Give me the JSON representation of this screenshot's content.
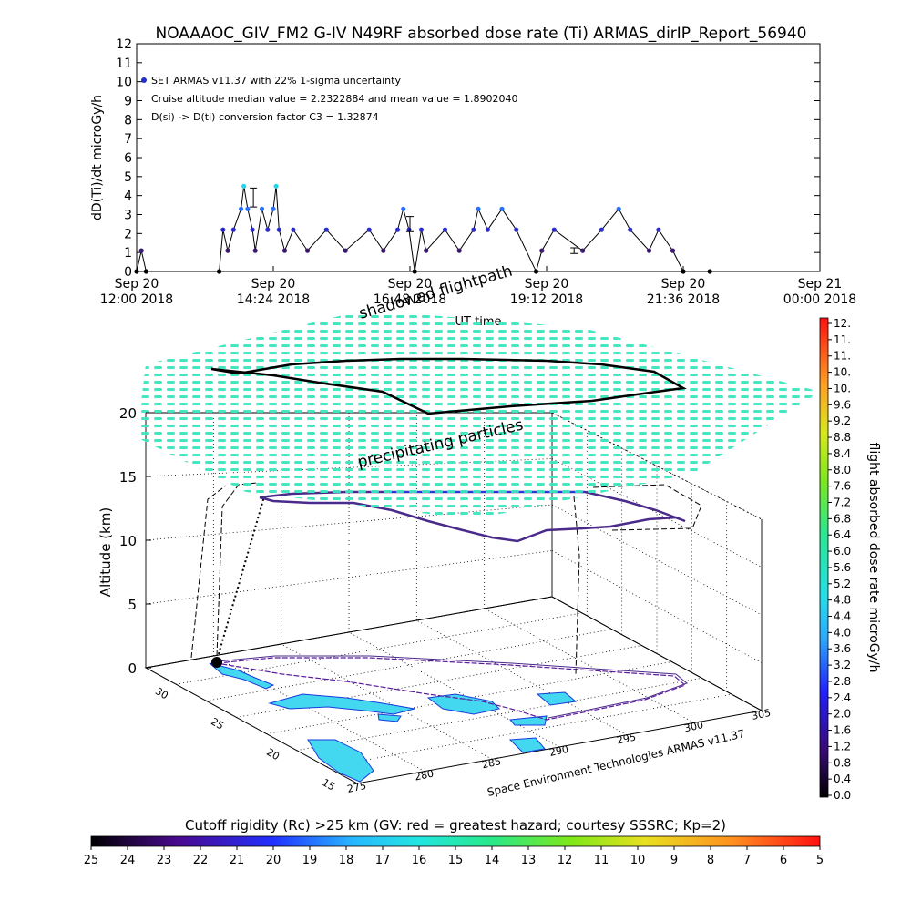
{
  "title": "NOAAAOC_GIV_FM2 G-IV    N49RF   absorbed dose rate (Ti) ARMAS_dirIP_Report_56940",
  "top_chart": {
    "ylabel": "dD(Ti)/dt microGy/h",
    "xlabel": "UT time",
    "annotations": [
      "SET ARMAS v11.37 with 22% 1-sigma uncertainty",
      "Cruise altitude median value = 2.2322884 and mean value = 1.8902040",
      "D(si) -> D(ti) conversion factor C3 = 1.32874"
    ],
    "y_ticks": [
      "0",
      "1",
      "2",
      "3",
      "4",
      "5",
      "6",
      "7",
      "8",
      "9",
      "10",
      "11",
      "12"
    ],
    "x_ticks": [
      {
        "l1": "Sep 20",
        "l2": "12:00  2018"
      },
      {
        "l1": "Sep 20",
        "l2": "14:24  2018"
      },
      {
        "l1": "Sep 20",
        "l2": "16:48  2018"
      },
      {
        "l1": "Sep 20",
        "l2": "19:12  2018"
      },
      {
        "l1": "Sep 20",
        "l2": "21:36  2018"
      },
      {
        "l1": "Sep 21",
        "l2": "00:00  2018"
      }
    ]
  },
  "chart_data": [
    {
      "type": "scatter",
      "title": "NOAAAOC_GIV_FM2 G-IV    N49RF   absorbed dose rate (Ti) ARMAS_dirIP_Report_56940",
      "xlabel": "UT time",
      "ylabel": "dD(Ti)/dt microGy/h",
      "xlim": [
        "2018-09-20 12:00",
        "2018-09-21 00:00"
      ],
      "ylim": [
        0,
        12
      ],
      "series": [
        {
          "name": "SET ARMAS v11.37 with 22% 1-sigma uncertainty",
          "points": [
            [
              "2018-09-20 12:00",
              0
            ],
            [
              "2018-09-20 12:05",
              1.1
            ],
            [
              "2018-09-20 12:10",
              0
            ],
            [
              "2018-09-20 13:27",
              0
            ],
            [
              "2018-09-20 13:31",
              2.2
            ],
            [
              "2018-09-20 13:36",
              1.1
            ],
            [
              "2018-09-20 13:42",
              2.2
            ],
            [
              "2018-09-20 13:50",
              3.3
            ],
            [
              "2018-09-20 13:53",
              4.5
            ],
            [
              "2018-09-20 13:57",
              3.3
            ],
            [
              "2018-09-20 14:02",
              2.2
            ],
            [
              "2018-09-20 14:05",
              1.1
            ],
            [
              "2018-09-20 14:12",
              3.3
            ],
            [
              "2018-09-20 14:18",
              2.2
            ],
            [
              "2018-09-20 14:24",
              3.3
            ],
            [
              "2018-09-20 14:27",
              4.5
            ],
            [
              "2018-09-20 14:30",
              2.2
            ],
            [
              "2018-09-20 14:36",
              1.1
            ],
            [
              "2018-09-20 14:45",
              2.2
            ],
            [
              "2018-09-20 15:00",
              1.1
            ],
            [
              "2018-09-20 15:20",
              2.2
            ],
            [
              "2018-09-20 15:40",
              1.1
            ],
            [
              "2018-09-20 16:05",
              2.2
            ],
            [
              "2018-09-20 16:20",
              1.1
            ],
            [
              "2018-09-20 16:35",
              2.2
            ],
            [
              "2018-09-20 16:41",
              3.3
            ],
            [
              "2018-09-20 16:47",
              2.2
            ],
            [
              "2018-09-20 16:53",
              0
            ],
            [
              "2018-09-20 17:00",
              2.2
            ],
            [
              "2018-09-20 17:05",
              1.1
            ],
            [
              "2018-09-20 17:25",
              2.2
            ],
            [
              "2018-09-20 17:40",
              1.1
            ],
            [
              "2018-09-20 17:55",
              2.2
            ],
            [
              "2018-09-20 18:00",
              3.3
            ],
            [
              "2018-09-20 18:10",
              2.2
            ],
            [
              "2018-09-20 18:25",
              3.3
            ],
            [
              "2018-09-20 18:40",
              2.2
            ],
            [
              "2018-09-20 19:01",
              0
            ],
            [
              "2018-09-20 19:07",
              1.1
            ],
            [
              "2018-09-20 19:20",
              2.2
            ],
            [
              "2018-09-20 19:50",
              1.1
            ],
            [
              "2018-09-20 20:10",
              2.2
            ],
            [
              "2018-09-20 20:28",
              3.3
            ],
            [
              "2018-09-20 20:40",
              2.2
            ],
            [
              "2018-09-20 21:00",
              1.1
            ],
            [
              "2018-09-20 21:10",
              2.2
            ],
            [
              "2018-09-20 21:25",
              1.1
            ],
            [
              "2018-09-20 21:36",
              0
            ],
            [
              "2018-09-20 22:04",
              0
            ]
          ]
        }
      ]
    },
    {
      "type": "scatter",
      "title": "",
      "xlabel": "",
      "ylabel": "Altitude (km)",
      "zlim": [
        0,
        20
      ],
      "x_axis_ticks": [
        "275",
        "280",
        "285",
        "290",
        "295",
        "300",
        "305"
      ],
      "y_axis_ticks": [
        "15",
        "20",
        "25",
        "30"
      ],
      "z_axis_ticks": [
        "0",
        "5",
        "10",
        "15",
        "20"
      ],
      "labels": [
        "shadowed flightpath",
        "precipitating particles"
      ]
    }
  ],
  "panel3d": {
    "ylabel": "Altitude (km)",
    "label_shadowed": "shadowed flightpath",
    "label_precip": "precipitating particles",
    "credit": "Space Environment Technologies ARMAS v11.37",
    "z_ticks": [
      "0",
      "5",
      "10",
      "15",
      "20"
    ],
    "lon_ticks": [
      "275",
      "280",
      "285",
      "290",
      "295",
      "300",
      "305"
    ],
    "lat_ticks": [
      "15",
      "20",
      "25",
      "30"
    ]
  },
  "right_colorbar": {
    "label": "flight absorbed dose rate microGy/h",
    "ticks": [
      "12.",
      "11.",
      "11.",
      "10.",
      "10.",
      "9.6",
      "9.2",
      "8.8",
      "8.4",
      "8.0",
      "7.6",
      "7.2",
      "6.8",
      "6.4",
      "6.0",
      "5.6",
      "5.2",
      "4.8",
      "4.4",
      "4.0",
      "3.6",
      "3.2",
      "2.8",
      "2.4",
      "2.0",
      "1.6",
      "1.2",
      "0.8",
      "0.4",
      "0.0"
    ]
  },
  "bottom_colorbar": {
    "label": "Cutoff rigidity (Rc) >25 km (GV: red = greatest hazard; courtesy SSSRC; Kp=2)",
    "ticks": [
      "25",
      "24",
      "23",
      "22",
      "21",
      "20",
      "19",
      "18",
      "17",
      "16",
      "15",
      "14",
      "13",
      "12",
      "11",
      "10",
      "9",
      "8",
      "7",
      "6",
      "5"
    ]
  },
  "colors": {
    "dose_low": "#3a1ac0",
    "dose_high": "#22d6ee",
    "particles": "#36e6b4",
    "flight_high": "#4a2a8a",
    "land": "#44d8f0"
  }
}
